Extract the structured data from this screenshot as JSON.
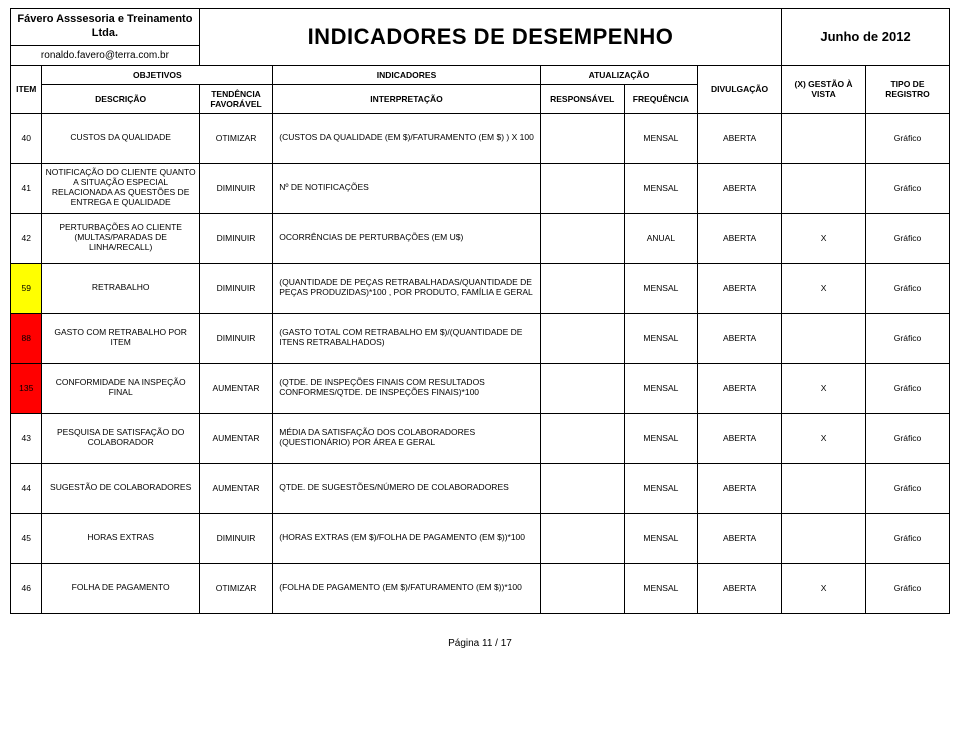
{
  "header": {
    "company": "Fávero Asssesoria e Treinamento Ltda.",
    "email": "ronaldo.favero@terra.com.br",
    "title": "INDICADORES DE DESEMPENHO",
    "period": "Junho de 2012"
  },
  "columns": {
    "item": "ITEM",
    "objetivos": "OBJETIVOS",
    "descricao": "DESCRIÇÃO",
    "tendencia": "TENDÊNCIA FAVORÁVEL",
    "indicadores": "INDICADORES",
    "interpretacao": "INTERPRETAÇÃO",
    "atualizacao": "ATUALIZAÇÃO",
    "responsavel": "RESPONSÁVEL",
    "frequencia": "FREQUÊNCIA",
    "divulgacao": "DIVULGAÇÃO",
    "vista": "(X) GESTÃO À VISTA",
    "tipo": "TIPO DE REGISTRO"
  },
  "rows": [
    {
      "item": "40",
      "itemClass": "item-white",
      "desc": "CUSTOS DA QUALIDADE",
      "tend": "OTIMIZAR",
      "interp": "(CUSTOS DA QUALIDADE (EM $)/FATURAMENTO (EM $) ) X 100",
      "resp": "",
      "freq": "MENSAL",
      "div": "ABERTA",
      "vista": "",
      "tipo": "Gráfico"
    },
    {
      "item": "41",
      "itemClass": "item-white",
      "desc": "NOTIFICAÇÃO DO CLIENTE QUANTO A SITUAÇÃO ESPECIAL RELACIONADA AS QUESTÕES DE ENTREGA E QUALIDADE",
      "tend": "DIMINUIR",
      "interp": "Nº DE NOTIFICAÇÕES",
      "resp": "",
      "freq": "MENSAL",
      "div": "ABERTA",
      "vista": "",
      "tipo": "Gráfico"
    },
    {
      "item": "42",
      "itemClass": "item-white",
      "desc": "PERTURBAÇÕES AO CLIENTE (MULTAS/PARADAS DE LINHA/RECALL)",
      "tend": "DIMINUIR",
      "interp": "OCORRÊNCIAS DE PERTURBAÇÕES (EM U$)",
      "resp": "",
      "freq": "ANUAL",
      "div": "ABERTA",
      "vista": "X",
      "tipo": "Gráfico"
    },
    {
      "item": "59",
      "itemClass": "item-yellow",
      "desc": "RETRABALHO",
      "tend": "DIMINUIR",
      "interp": "(QUANTIDADE DE PEÇAS RETRABALHADAS/QUANTIDADE DE PEÇAS PRODUZIDAS)*100 , POR PRODUTO, FAMÍLIA E GERAL",
      "resp": "",
      "freq": "MENSAL",
      "div": "ABERTA",
      "vista": "X",
      "tipo": "Gráfico"
    },
    {
      "item": "88",
      "itemClass": "item-red",
      "desc": "GASTO COM RETRABALHO POR ITEM",
      "tend": "DIMINUIR",
      "interp": "(GASTO TOTAL COM RETRABALHO EM $)/(QUANTIDADE DE ITENS RETRABALHADOS)",
      "resp": "",
      "freq": "MENSAL",
      "div": "ABERTA",
      "vista": "",
      "tipo": "Gráfico"
    },
    {
      "item": "135",
      "itemClass": "item-red",
      "desc": "CONFORMIDADE NA INSPEÇÃO FINAL",
      "tend": "AUMENTAR",
      "interp": "(QTDE. DE INSPEÇÕES FINAIS COM RESULTADOS CONFORMES/QTDE. DE INSPEÇÕES FINAIS)*100",
      "resp": "",
      "freq": "MENSAL",
      "div": "ABERTA",
      "vista": "X",
      "tipo": "Gráfico"
    },
    {
      "item": "43",
      "itemClass": "item-white",
      "desc": "PESQUISA DE SATISFAÇÃO DO COLABORADOR",
      "tend": "AUMENTAR",
      "interp": "MÉDIA DA SATISFAÇÃO DOS COLABORADORES (QUESTIONÁRIO) POR ÁREA E GERAL",
      "resp": "",
      "freq": "MENSAL",
      "div": "ABERTA",
      "vista": "X",
      "tipo": "Gráfico"
    },
    {
      "item": "44",
      "itemClass": "item-white",
      "desc": "SUGESTÃO DE COLABORADORES",
      "tend": "AUMENTAR",
      "interp": "QTDE. DE SUGESTÕES/NÚMERO DE COLABORADORES",
      "resp": "",
      "freq": "MENSAL",
      "div": "ABERTA",
      "vista": "",
      "tipo": "Gráfico"
    },
    {
      "item": "45",
      "itemClass": "item-white",
      "desc": "HORAS EXTRAS",
      "tend": "DIMINUIR",
      "interp": "(HORAS EXTRAS (EM $)/FOLHA DE PAGAMENTO (EM $))*100",
      "resp": "",
      "freq": "MENSAL",
      "div": "ABERTA",
      "vista": "",
      "tipo": "Gráfico"
    },
    {
      "item": "46",
      "itemClass": "item-white",
      "desc": "FOLHA DE PAGAMENTO",
      "tend": "OTIMIZAR",
      "interp": "(FOLHA DE PAGAMENTO (EM $)/FATURAMENTO (EM $))*100",
      "resp": "",
      "freq": "MENSAL",
      "div": "ABERTA",
      "vista": "X",
      "tipo": "Gráfico"
    }
  ],
  "footer": "Página 11 / 17"
}
